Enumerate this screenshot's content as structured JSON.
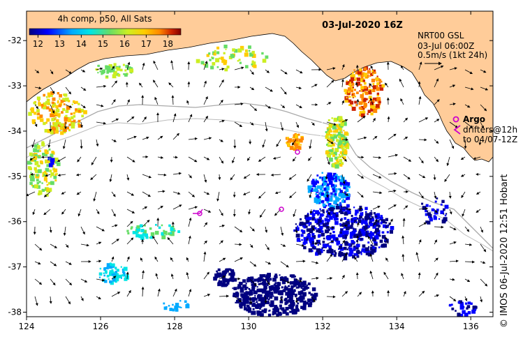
{
  "colorbar": {
    "title": "4h comp, p50, All Sats",
    "ticks": [
      "12",
      "13",
      "14",
      "15",
      "16",
      "17",
      "18"
    ],
    "min": 11.6,
    "max": 18.6,
    "colors": [
      "#000080",
      "#0000ff",
      "#00aaff",
      "#00e5e5",
      "#66dd66",
      "#ccee22",
      "#ffcc00",
      "#ff8800",
      "#cc2200",
      "#800000"
    ]
  },
  "header": {
    "date": "03-Jul-2020 16Z"
  },
  "legend": {
    "line1": "NRT00 GSL",
    "line2": "03-Jul 06:00Z",
    "line3": "0.5m/s (1kt 24h)"
  },
  "argo": {
    "title": "Argo",
    "line1": "drifters@12h",
    "line2": "to 04/07-12Z"
  },
  "axes": {
    "lon": [
      "124",
      "126",
      "128",
      "130",
      "132",
      "134",
      "136"
    ],
    "lat": [
      "-32",
      "-33",
      "-34",
      "-35",
      "-36",
      "-37",
      "-38"
    ],
    "lon_range": [
      124,
      136.6
    ],
    "lat_range": [
      -31.35,
      -38.1
    ]
  },
  "watermark": "© IMOS 06-Jul-2020 12:51 Hobart",
  "colors": {
    "land": "#ffcc99",
    "coast": "#000000",
    "contour": "#aaaaaa",
    "argo": "#cc00cc"
  }
}
